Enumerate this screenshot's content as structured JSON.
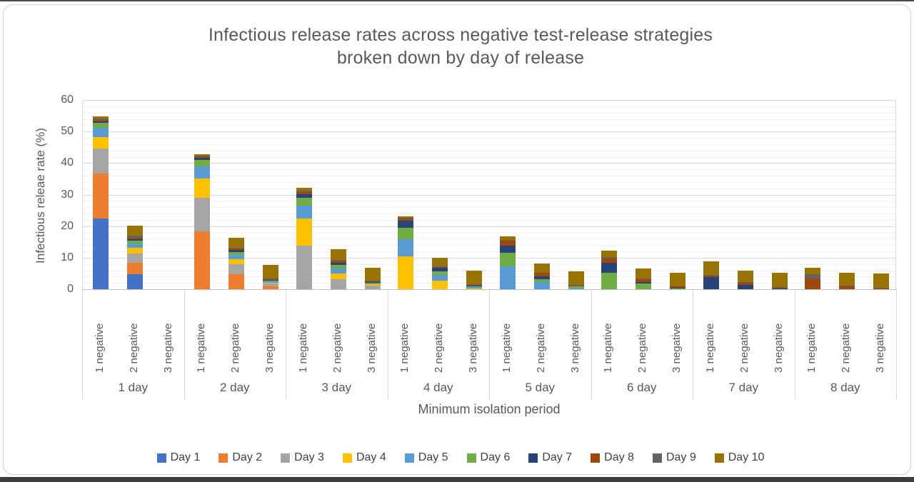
{
  "title": {
    "line1": "Infectious release rates across negative test-release strategies",
    "line2": "broken down by day of release"
  },
  "chart_data": {
    "type": "bar",
    "stacked": true,
    "title": "Infectious release rates across negative test-release strategies broken down by day of release",
    "xlabel": "Minimum isolation period",
    "ylabel": "Infectious releae rate (%)",
    "ylim": [
      0,
      60
    ],
    "yticks": [
      0,
      10,
      20,
      30,
      40,
      50,
      60
    ],
    "minor_gridline_step": 2,
    "major_gridline_step": 10,
    "grid": true,
    "legend_position": "bottom",
    "groups": [
      "1 day",
      "2 day",
      "3 day",
      "4 day",
      "5 day",
      "6 day",
      "7 day",
      "8 day"
    ],
    "bar_labels": [
      "1 negative",
      "2 negative",
      "3 negative"
    ],
    "values_unit": "percent",
    "series": [
      {
        "name": "Day 1",
        "color": "#4472C4",
        "values": [
          22.3,
          4.8,
          0,
          0,
          0,
          0,
          0,
          0,
          0,
          0,
          0,
          0,
          0,
          0,
          0,
          0,
          0,
          0,
          0,
          0,
          0,
          0,
          0,
          0
        ]
      },
      {
        "name": "Day 2",
        "color": "#ED7D31",
        "values": [
          14.4,
          3.6,
          0,
          18.3,
          4.8,
          1.0,
          0,
          0,
          0,
          0,
          0,
          0,
          0,
          0,
          0,
          0,
          0,
          0,
          0,
          0,
          0,
          0,
          0,
          0
        ]
      },
      {
        "name": "Day 3",
        "color": "#A5A5A5",
        "values": [
          7.9,
          2.8,
          0,
          10.7,
          3.2,
          0.8,
          13.9,
          3.2,
          1.2,
          0,
          0,
          0,
          0,
          0,
          0,
          0,
          0,
          0,
          0,
          0,
          0,
          0,
          0,
          0
        ]
      },
      {
        "name": "Day 4",
        "color": "#FFC000",
        "values": [
          3.7,
          2.0,
          0,
          6.0,
          1.5,
          0.3,
          8.4,
          1.8,
          0.3,
          10.3,
          2.6,
          0.3,
          0,
          0,
          0,
          0,
          0,
          0,
          0,
          0,
          0,
          0,
          0,
          0
        ]
      },
      {
        "name": "Day 5",
        "color": "#5B9BD5",
        "values": [
          2.9,
          1.2,
          0,
          3.9,
          1.4,
          0.4,
          4.2,
          1.5,
          0.3,
          5.5,
          1.9,
          0.4,
          7.3,
          2.2,
          0.4,
          0,
          0,
          0,
          0,
          0,
          0,
          0,
          0,
          0
        ]
      },
      {
        "name": "Day 6",
        "color": "#70AD47",
        "values": [
          1.6,
          1.0,
          0,
          2.0,
          0.9,
          0.3,
          2.5,
          1.2,
          0.3,
          3.7,
          1.1,
          0.3,
          4.3,
          1.0,
          0.4,
          5.3,
          1.7,
          0.3,
          0,
          0,
          0,
          0,
          0,
          0
        ]
      },
      {
        "name": "Day 7",
        "color": "#264478",
        "values": [
          0.4,
          0.5,
          0,
          0.7,
          0.7,
          0.2,
          1.0,
          0.7,
          0.2,
          2.2,
          1.1,
          0.2,
          2.3,
          0.9,
          0.2,
          3.0,
          0.5,
          0.2,
          3.8,
          1.4,
          0.3,
          0,
          0,
          0
        ]
      },
      {
        "name": "Day 8",
        "color": "#9E480E",
        "values": [
          0.5,
          0.5,
          0,
          0.4,
          0.4,
          0.2,
          0.8,
          0.6,
          0.2,
          0.6,
          0.3,
          0.2,
          1.4,
          1.0,
          0.2,
          1.5,
          1.0,
          0.3,
          0.4,
          0.6,
          0.2,
          3.4,
          0.9,
          0.3
        ]
      },
      {
        "name": "Day 9",
        "color": "#636363",
        "values": [
          0.4,
          0.5,
          0,
          0.3,
          0.3,
          0.2,
          0.4,
          0.3,
          0.2,
          0.3,
          0.2,
          0.1,
          0.3,
          0.2,
          0.1,
          0.4,
          0.2,
          0.1,
          0.3,
          0.2,
          0.1,
          1.3,
          0.3,
          0.1
        ]
      },
      {
        "name": "Day 10",
        "color": "#997300",
        "values": [
          0.8,
          3.3,
          0,
          0.5,
          3.0,
          4.4,
          0.9,
          3.3,
          4.2,
          0.6,
          2.8,
          4.5,
          1.2,
          2.8,
          4.4,
          2.0,
          3.1,
          4.4,
          4.3,
          3.7,
          4.5,
          2.2,
          4.1,
          4.5
        ]
      }
    ]
  }
}
